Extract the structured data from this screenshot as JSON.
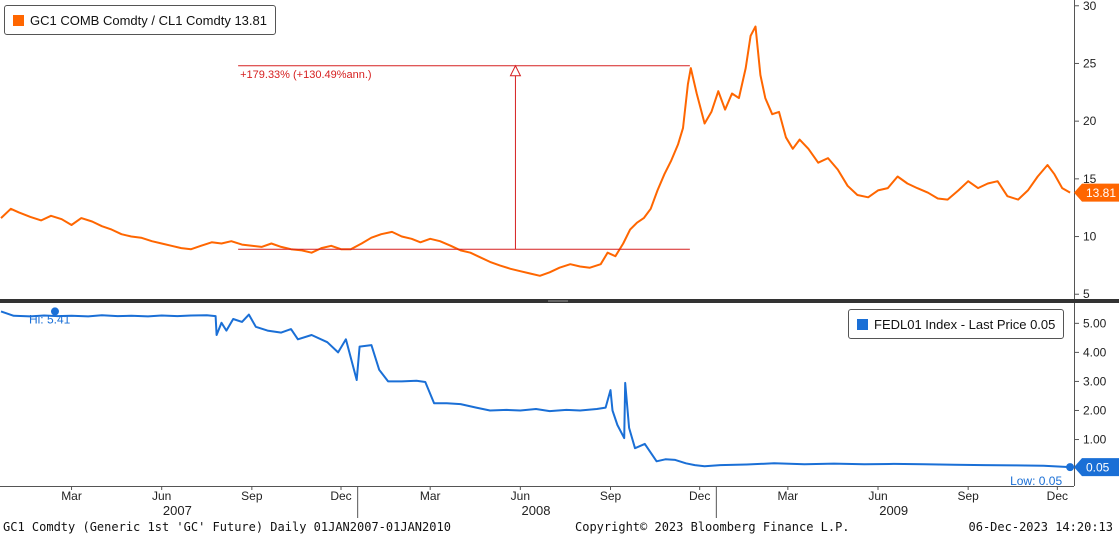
{
  "chart_data": [
    {
      "type": "line",
      "legend": {
        "label": "GC1 COMB Comdty / CL1 Comdty 13.81",
        "color": "#ff6600",
        "position": "top-left"
      },
      "y_ticks": [
        "30",
        "25",
        "20",
        "15",
        "10",
        "5"
      ],
      "ylim": [
        4.5,
        30.5
      ],
      "last_value_label": "13.81",
      "annotation": {
        "label": "+179.33% (+130.49%ann.)",
        "color": "#d62020",
        "from": {
          "x": "2008-06-10",
          "y": 8.9
        },
        "to": {
          "x": "2008-12-05",
          "y": 24.8
        }
      },
      "series": [
        {
          "color": "#ff6600",
          "points": [
            [
              "2007-01-02",
              11.6
            ],
            [
              "2007-01-12",
              12.4
            ],
            [
              "2007-01-20",
              12.1
            ],
            [
              "2007-02-01",
              11.7
            ],
            [
              "2007-02-12",
              11.4
            ],
            [
              "2007-02-22",
              11.8
            ],
            [
              "2007-03-05",
              11.5
            ],
            [
              "2007-03-15",
              11.0
            ],
            [
              "2007-03-25",
              11.6
            ],
            [
              "2007-04-05",
              11.3
            ],
            [
              "2007-04-15",
              10.9
            ],
            [
              "2007-04-25",
              10.6
            ],
            [
              "2007-05-05",
              10.2
            ],
            [
              "2007-05-15",
              10.0
            ],
            [
              "2007-05-25",
              9.9
            ],
            [
              "2007-06-05",
              9.6
            ],
            [
              "2007-06-15",
              9.4
            ],
            [
              "2007-06-25",
              9.2
            ],
            [
              "2007-07-05",
              9.0
            ],
            [
              "2007-07-15",
              8.9
            ],
            [
              "2007-07-25",
              9.2
            ],
            [
              "2007-08-05",
              9.5
            ],
            [
              "2007-08-15",
              9.4
            ],
            [
              "2007-08-25",
              9.6
            ],
            [
              "2007-09-05",
              9.3
            ],
            [
              "2007-09-15",
              9.2
            ],
            [
              "2007-09-25",
              9.1
            ],
            [
              "2007-10-05",
              9.4
            ],
            [
              "2007-10-15",
              9.1
            ],
            [
              "2007-10-25",
              8.9
            ],
            [
              "2007-11-05",
              8.8
            ],
            [
              "2007-11-15",
              8.6
            ],
            [
              "2007-11-25",
              9.0
            ],
            [
              "2007-12-05",
              9.2
            ],
            [
              "2007-12-15",
              8.9
            ],
            [
              "2007-12-25",
              8.9
            ],
            [
              "2008-01-05",
              9.4
            ],
            [
              "2008-01-15",
              9.9
            ],
            [
              "2008-01-25",
              10.2
            ],
            [
              "2008-02-05",
              10.4
            ],
            [
              "2008-02-15",
              10.0
            ],
            [
              "2008-02-25",
              9.8
            ],
            [
              "2008-03-05",
              9.5
            ],
            [
              "2008-03-15",
              9.8
            ],
            [
              "2008-03-25",
              9.6
            ],
            [
              "2008-04-05",
              9.2
            ],
            [
              "2008-04-15",
              8.8
            ],
            [
              "2008-04-25",
              8.6
            ],
            [
              "2008-05-05",
              8.2
            ],
            [
              "2008-05-15",
              7.8
            ],
            [
              "2008-05-25",
              7.5
            ],
            [
              "2008-06-05",
              7.2
            ],
            [
              "2008-06-15",
              7.0
            ],
            [
              "2008-06-25",
              6.8
            ],
            [
              "2008-07-05",
              6.6
            ],
            [
              "2008-07-15",
              6.9
            ],
            [
              "2008-07-25",
              7.3
            ],
            [
              "2008-08-05",
              7.6
            ],
            [
              "2008-08-15",
              7.4
            ],
            [
              "2008-08-25",
              7.3
            ],
            [
              "2008-09-05",
              7.6
            ],
            [
              "2008-09-12",
              8.6
            ],
            [
              "2008-09-20",
              8.3
            ],
            [
              "2008-09-28",
              9.4
            ],
            [
              "2008-10-05",
              10.6
            ],
            [
              "2008-10-12",
              11.2
            ],
            [
              "2008-10-19",
              11.6
            ],
            [
              "2008-10-26",
              12.4
            ],
            [
              "2008-11-02",
              14.0
            ],
            [
              "2008-11-09",
              15.4
            ],
            [
              "2008-11-16",
              16.6
            ],
            [
              "2008-11-23",
              18.0
            ],
            [
              "2008-11-28",
              19.4
            ],
            [
              "2008-12-03",
              23.2
            ],
            [
              "2008-12-06",
              24.6
            ],
            [
              "2008-12-12",
              22.4
            ],
            [
              "2008-12-20",
              19.8
            ],
            [
              "2008-12-27",
              20.8
            ],
            [
              "2009-01-03",
              22.6
            ],
            [
              "2009-01-10",
              21.0
            ],
            [
              "2009-01-17",
              22.4
            ],
            [
              "2009-01-24",
              22.0
            ],
            [
              "2009-01-31",
              24.6
            ],
            [
              "2009-02-05",
              27.4
            ],
            [
              "2009-02-10",
              28.2
            ],
            [
              "2009-02-15",
              24.0
            ],
            [
              "2009-02-20",
              22.0
            ],
            [
              "2009-02-27",
              20.6
            ],
            [
              "2009-03-06",
              20.8
            ],
            [
              "2009-03-13",
              18.6
            ],
            [
              "2009-03-20",
              17.6
            ],
            [
              "2009-03-27",
              18.4
            ],
            [
              "2009-04-05",
              17.6
            ],
            [
              "2009-04-15",
              16.4
            ],
            [
              "2009-04-25",
              16.8
            ],
            [
              "2009-05-05",
              15.8
            ],
            [
              "2009-05-15",
              14.4
            ],
            [
              "2009-05-25",
              13.6
            ],
            [
              "2009-06-05",
              13.4
            ],
            [
              "2009-06-15",
              14.0
            ],
            [
              "2009-06-25",
              14.2
            ],
            [
              "2009-07-05",
              15.2
            ],
            [
              "2009-07-15",
              14.6
            ],
            [
              "2009-07-25",
              14.2
            ],
            [
              "2009-08-05",
              13.8
            ],
            [
              "2009-08-15",
              13.3
            ],
            [
              "2009-08-25",
              13.2
            ],
            [
              "2009-09-05",
              14.0
            ],
            [
              "2009-09-15",
              14.8
            ],
            [
              "2009-09-25",
              14.2
            ],
            [
              "2009-10-05",
              14.6
            ],
            [
              "2009-10-15",
              14.8
            ],
            [
              "2009-10-25",
              13.5
            ],
            [
              "2009-11-05",
              13.2
            ],
            [
              "2009-11-15",
              14.0
            ],
            [
              "2009-11-25",
              15.2
            ],
            [
              "2009-12-05",
              16.2
            ],
            [
              "2009-12-12",
              15.4
            ],
            [
              "2009-12-20",
              14.2
            ],
            [
              "2009-12-28",
              13.81
            ]
          ]
        }
      ]
    },
    {
      "type": "line",
      "legend": {
        "label": "FEDL01 Index - Last Price 0.05",
        "color": "#1a6fd6",
        "position": "top-right"
      },
      "y_ticks": [
        "5.00",
        "4.00",
        "3.00",
        "2.00",
        "1.00"
      ],
      "ylim": [
        -0.6,
        5.7
      ],
      "hi_label": "Hi: 5.41",
      "low_label": "Low: 0.05",
      "last_value_label": "0.05",
      "series": [
        {
          "color": "#1a6fd6",
          "points": [
            [
              "2007-01-02",
              5.41
            ],
            [
              "2007-01-15",
              5.26
            ],
            [
              "2007-02-01",
              5.24
            ],
            [
              "2007-02-15",
              5.27
            ],
            [
              "2007-03-01",
              5.25
            ],
            [
              "2007-03-15",
              5.26
            ],
            [
              "2007-04-01",
              5.24
            ],
            [
              "2007-04-15",
              5.28
            ],
            [
              "2007-05-01",
              5.25
            ],
            [
              "2007-05-15",
              5.26
            ],
            [
              "2007-06-01",
              5.24
            ],
            [
              "2007-06-15",
              5.27
            ],
            [
              "2007-07-01",
              5.25
            ],
            [
              "2007-07-15",
              5.27
            ],
            [
              "2007-07-31",
              5.28
            ],
            [
              "2007-08-09",
              5.25
            ],
            [
              "2007-08-10",
              4.6
            ],
            [
              "2007-08-15",
              5.02
            ],
            [
              "2007-08-20",
              4.75
            ],
            [
              "2007-08-27",
              5.15
            ],
            [
              "2007-09-05",
              5.05
            ],
            [
              "2007-09-12",
              5.3
            ],
            [
              "2007-09-19",
              4.88
            ],
            [
              "2007-10-01",
              4.75
            ],
            [
              "2007-10-15",
              4.68
            ],
            [
              "2007-10-25",
              4.8
            ],
            [
              "2007-11-01",
              4.45
            ],
            [
              "2007-11-15",
              4.6
            ],
            [
              "2007-12-01",
              4.35
            ],
            [
              "2007-12-12",
              4.0
            ],
            [
              "2007-12-20",
              4.45
            ],
            [
              "2007-12-31",
              3.05
            ],
            [
              "2008-01-03",
              4.2
            ],
            [
              "2008-01-15",
              4.25
            ],
            [
              "2008-01-23",
              3.4
            ],
            [
              "2008-02-01",
              3.0
            ],
            [
              "2008-02-15",
              3.0
            ],
            [
              "2008-03-01",
              3.02
            ],
            [
              "2008-03-10",
              2.98
            ],
            [
              "2008-03-19",
              2.25
            ],
            [
              "2008-04-01",
              2.25
            ],
            [
              "2008-04-15",
              2.22
            ],
            [
              "2008-05-01",
              2.1
            ],
            [
              "2008-05-15",
              2.0
            ],
            [
              "2008-06-01",
              2.02
            ],
            [
              "2008-06-15",
              2.0
            ],
            [
              "2008-07-01",
              2.05
            ],
            [
              "2008-07-15",
              1.98
            ],
            [
              "2008-08-01",
              2.02
            ],
            [
              "2008-08-15",
              2.0
            ],
            [
              "2008-09-01",
              2.05
            ],
            [
              "2008-09-10",
              2.1
            ],
            [
              "2008-09-15",
              2.7
            ],
            [
              "2008-09-17",
              2.0
            ],
            [
              "2008-09-22",
              1.5
            ],
            [
              "2008-09-29",
              1.05
            ],
            [
              "2008-09-30",
              2.95
            ],
            [
              "2008-10-04",
              1.4
            ],
            [
              "2008-10-10",
              0.7
            ],
            [
              "2008-10-20",
              0.85
            ],
            [
              "2008-11-01",
              0.25
            ],
            [
              "2008-11-10",
              0.32
            ],
            [
              "2008-11-20",
              0.3
            ],
            [
              "2008-12-01",
              0.18
            ],
            [
              "2008-12-10",
              0.12
            ],
            [
              "2008-12-20",
              0.08
            ],
            [
              "2009-01-05",
              0.12
            ],
            [
              "2009-02-01",
              0.14
            ],
            [
              "2009-03-01",
              0.18
            ],
            [
              "2009-04-01",
              0.15
            ],
            [
              "2009-05-01",
              0.17
            ],
            [
              "2009-06-01",
              0.15
            ],
            [
              "2009-07-01",
              0.16
            ],
            [
              "2009-08-01",
              0.15
            ],
            [
              "2009-09-01",
              0.13
            ],
            [
              "2009-10-01",
              0.12
            ],
            [
              "2009-11-01",
              0.11
            ],
            [
              "2009-12-01",
              0.1
            ],
            [
              "2009-12-28",
              0.05
            ]
          ]
        }
      ]
    }
  ],
  "x_axis": {
    "range": [
      "2007-01-01",
      "2010-01-01"
    ],
    "month_ticks": [
      {
        "label": "Mar",
        "date": "2007-03-15"
      },
      {
        "label": "Jun",
        "date": "2007-06-15"
      },
      {
        "label": "Sep",
        "date": "2007-09-15"
      },
      {
        "label": "Dec",
        "date": "2007-12-15"
      },
      {
        "label": "Mar",
        "date": "2008-03-15"
      },
      {
        "label": "Jun",
        "date": "2008-06-15"
      },
      {
        "label": "Sep",
        "date": "2008-09-15"
      },
      {
        "label": "Dec",
        "date": "2008-12-15"
      },
      {
        "label": "Mar",
        "date": "2009-03-15"
      },
      {
        "label": "Jun",
        "date": "2009-06-15"
      },
      {
        "label": "Sep",
        "date": "2009-09-15"
      },
      {
        "label": "Dec",
        "date": "2009-12-15"
      }
    ],
    "years": [
      {
        "label": "2007",
        "date": "2007-07-01"
      },
      {
        "label": "2008",
        "date": "2008-07-01"
      },
      {
        "label": "2009",
        "date": "2009-07-01"
      }
    ]
  },
  "footer": {
    "left": "GC1 Comdty (Generic 1st 'GC' Future)  Daily 01JAN2007-01JAN2010",
    "center": "Copyright© 2023 Bloomberg Finance L.P.",
    "right": "06-Dec-2023 14:20:13"
  }
}
